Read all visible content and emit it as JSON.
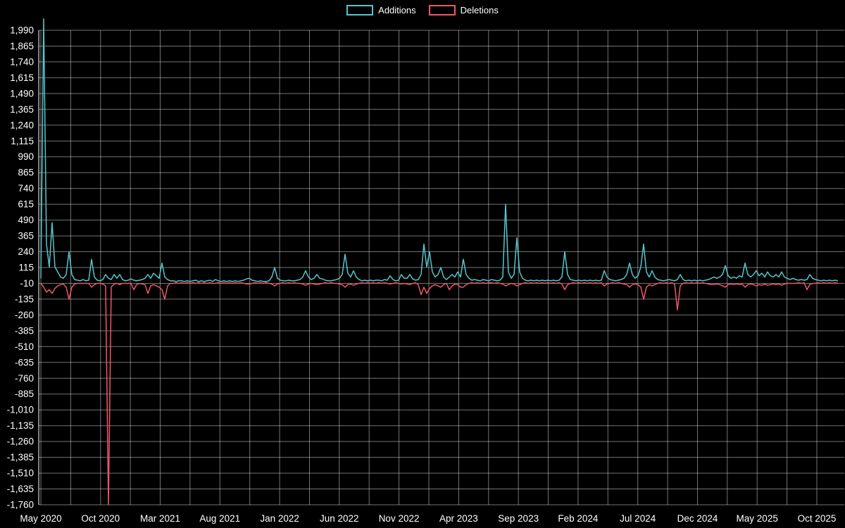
{
  "page": {
    "background": "#000000"
  },
  "chart_data": {
    "type": "line",
    "title": "",
    "xlabel": "",
    "ylabel": "",
    "grid": true,
    "legend_position": "top-center",
    "background_color": "#000000",
    "grid_color": "#ffffff",
    "text_color": "#ffffff",
    "x_tick_labels": [
      "May 2020",
      "Oct 2020",
      "Mar 2021",
      "Aug 2021",
      "Jan 2022",
      "Jun 2022",
      "Nov 2022",
      "Apr 2023",
      "Sep 2023",
      "Feb 2024",
      "Jul 2024",
      "Dec 2024",
      "May 2025",
      "Oct 2025"
    ],
    "y_ticks": [
      1990,
      1865,
      1740,
      1615,
      1490,
      1365,
      1240,
      1115,
      990,
      865,
      740,
      615,
      490,
      365,
      240,
      115,
      -10,
      -135,
      -260,
      -385,
      -510,
      -635,
      -760,
      -885,
      -1010,
      -1135,
      -1260,
      -1385,
      -1510,
      -1635,
      -1760
    ],
    "ylim": [
      -1760,
      2080
    ],
    "x_unit": "week",
    "series": [
      {
        "name": "Additions",
        "color": "#55c6cc",
        "values": [
          30,
          2080,
          300,
          120,
          470,
          120,
          80,
          40,
          30,
          60,
          240,
          60,
          20,
          15,
          10,
          20,
          10,
          15,
          180,
          40,
          15,
          10,
          20,
          60,
          30,
          20,
          60,
          30,
          60,
          20,
          10,
          15,
          25,
          15,
          10,
          15,
          20,
          30,
          60,
          30,
          70,
          50,
          30,
          150,
          40,
          20,
          10,
          10,
          5,
          10,
          10,
          5,
          10,
          5,
          10,
          15,
          5,
          10,
          5,
          10,
          15,
          5,
          20,
          10,
          5,
          10,
          5,
          10,
          5,
          10,
          5,
          10,
          15,
          25,
          30,
          15,
          10,
          5,
          10,
          5,
          5,
          10,
          40,
          115,
          30,
          15,
          10,
          10,
          15,
          10,
          10,
          15,
          20,
          40,
          90,
          40,
          20,
          30,
          60,
          30,
          25,
          15,
          10,
          10,
          15,
          20,
          30,
          60,
          220,
          70,
          40,
          90,
          40,
          20,
          10,
          15,
          10,
          15,
          10,
          15,
          15,
          10,
          20,
          15,
          50,
          20,
          10,
          15,
          60,
          30,
          30,
          60,
          25,
          15,
          20,
          60,
          300,
          120,
          240,
          80,
          40,
          60,
          115,
          40,
          20,
          40,
          60,
          40,
          80,
          40,
          180,
          60,
          30,
          15,
          20,
          15,
          10,
          20,
          15,
          10,
          20,
          15,
          10,
          15,
          40,
          615,
          80,
          30,
          60,
          350,
          80,
          30,
          15,
          10,
          15,
          10,
          15,
          10,
          15,
          10,
          15,
          10,
          15,
          10,
          15,
          40,
          240,
          60,
          20,
          15,
          10,
          15,
          10,
          15,
          10,
          15,
          10,
          15,
          10,
          15,
          90,
          40,
          20,
          15,
          10,
          15,
          20,
          30,
          60,
          150,
          60,
          30,
          50,
          120,
          300,
          80,
          40,
          90,
          40,
          20,
          15,
          10,
          15,
          20,
          15,
          10,
          20,
          60,
          20,
          10,
          15,
          10,
          15,
          10,
          15,
          10,
          15,
          20,
          30,
          40,
          30,
          40,
          60,
          130,
          50,
          30,
          40,
          30,
          50,
          40,
          150,
          60,
          40,
          60,
          90,
          50,
          70,
          40,
          80,
          50,
          40,
          60,
          40,
          80,
          40,
          30,
          20,
          30,
          20,
          15,
          20,
          15,
          20,
          60,
          30,
          20,
          15,
          10,
          15,
          10,
          15,
          10,
          15,
          10
        ]
      },
      {
        "name": "Deletions",
        "color": "#ef5767",
        "values": [
          -10,
          -40,
          -80,
          -60,
          -90,
          -50,
          -30,
          -20,
          -15,
          -40,
          -135,
          -40,
          -15,
          -10,
          -10,
          -10,
          -10,
          -10,
          -40,
          -20,
          -10,
          -10,
          -15,
          -30,
          -1760,
          -40,
          -15,
          -10,
          -20,
          -10,
          -10,
          -10,
          -10,
          -60,
          -20,
          -10,
          -15,
          -20,
          -90,
          -30,
          -20,
          -30,
          -40,
          -60,
          -135,
          -30,
          -10,
          -10,
          -5,
          -10,
          -5,
          -10,
          -5,
          -10,
          -5,
          -10,
          -5,
          -10,
          -5,
          -10,
          -5,
          -10,
          -10,
          -5,
          -10,
          -5,
          -10,
          -5,
          -10,
          -5,
          -10,
          -5,
          -10,
          -15,
          -15,
          -10,
          -5,
          -10,
          -5,
          -10,
          -5,
          -10,
          -15,
          -30,
          -15,
          -10,
          -5,
          -10,
          -5,
          -10,
          -5,
          -10,
          -10,
          -15,
          -25,
          -15,
          -10,
          -15,
          -20,
          -15,
          -10,
          -5,
          -10,
          -5,
          -10,
          -10,
          -15,
          -20,
          -40,
          -20,
          -15,
          -25,
          -15,
          -10,
          -5,
          -10,
          -5,
          -10,
          -5,
          -10,
          -5,
          -10,
          -5,
          -10,
          -15,
          -10,
          -5,
          -10,
          -15,
          -10,
          -15,
          -20,
          -10,
          -5,
          -20,
          -100,
          -40,
          -90,
          -50,
          -30,
          -20,
          -30,
          -40,
          -20,
          -10,
          -60,
          -30,
          -15,
          -20,
          -40,
          -40,
          -20,
          -10,
          -5,
          -10,
          -5,
          -10,
          -5,
          -10,
          -5,
          -5,
          -10,
          -5,
          -10,
          -15,
          -30,
          -20,
          -10,
          -15,
          -30,
          -20,
          -10,
          -5,
          -10,
          -5,
          -10,
          -5,
          -10,
          -5,
          -10,
          -5,
          -10,
          -5,
          -10,
          -5,
          -15,
          -60,
          -20,
          -10,
          -5,
          -10,
          -5,
          -10,
          -5,
          -10,
          -5,
          -10,
          -5,
          -10,
          -5,
          -30,
          -15,
          -10,
          -5,
          -10,
          -5,
          -10,
          -15,
          -20,
          -40,
          -20,
          -15,
          -20,
          -40,
          -135,
          -40,
          -20,
          -30,
          -20,
          -10,
          -5,
          -10,
          -5,
          -10,
          -5,
          -15,
          -220,
          -30,
          -10,
          -5,
          -10,
          -5,
          -10,
          -5,
          -10,
          -5,
          -10,
          -15,
          -20,
          -20,
          -15,
          -20,
          -30,
          -40,
          -20,
          -15,
          -20,
          -15,
          -20,
          -15,
          -40,
          -20,
          -15,
          -20,
          -30,
          -20,
          -25,
          -15,
          -25,
          -20,
          -15,
          -20,
          -15,
          -25,
          -15,
          -10,
          -10,
          -10,
          -10,
          -5,
          -10,
          -5,
          -60,
          -20,
          -10,
          -10,
          -5,
          -10,
          -5,
          -10,
          -5,
          -10,
          -5,
          -10
        ]
      }
    ]
  }
}
